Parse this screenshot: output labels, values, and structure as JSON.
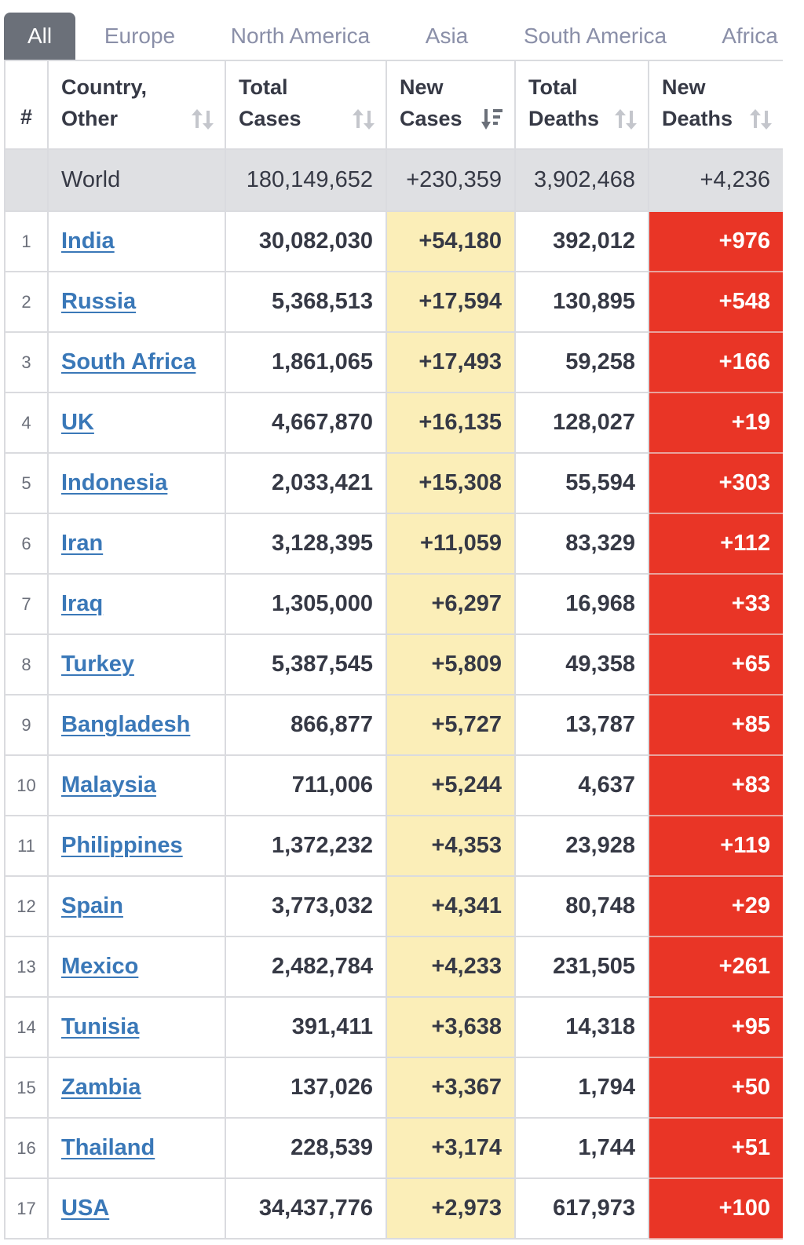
{
  "tabs": [
    {
      "label": "All",
      "active": true
    },
    {
      "label": "Europe",
      "active": false
    },
    {
      "label": "North America",
      "active": false
    },
    {
      "label": "Asia",
      "active": false
    },
    {
      "label": "South America",
      "active": false
    },
    {
      "label": "Africa",
      "active": false
    }
  ],
  "table": {
    "headers": {
      "rank": "#",
      "country": "Country,\nOther",
      "total_cases": "Total\nCases",
      "new_cases": "New\nCases",
      "total_deaths": "Total\nDeaths",
      "new_deaths": "New\nDeaths"
    },
    "sorted_column": "new_cases",
    "world": {
      "country": "World",
      "total_cases": "180,149,652",
      "new_cases": "+230,359",
      "total_deaths": "3,902,468",
      "new_deaths": "+4,236"
    },
    "rows": [
      {
        "rank": "1",
        "country": "India",
        "total_cases": "30,082,030",
        "new_cases": "+54,180",
        "total_deaths": "392,012",
        "new_deaths": "+976"
      },
      {
        "rank": "2",
        "country": "Russia",
        "total_cases": "5,368,513",
        "new_cases": "+17,594",
        "total_deaths": "130,895",
        "new_deaths": "+548"
      },
      {
        "rank": "3",
        "country": "South Africa",
        "total_cases": "1,861,065",
        "new_cases": "+17,493",
        "total_deaths": "59,258",
        "new_deaths": "+166"
      },
      {
        "rank": "4",
        "country": "UK",
        "total_cases": "4,667,870",
        "new_cases": "+16,135",
        "total_deaths": "128,027",
        "new_deaths": "+19"
      },
      {
        "rank": "5",
        "country": "Indonesia",
        "total_cases": "2,033,421",
        "new_cases": "+15,308",
        "total_deaths": "55,594",
        "new_deaths": "+303"
      },
      {
        "rank": "6",
        "country": "Iran",
        "total_cases": "3,128,395",
        "new_cases": "+11,059",
        "total_deaths": "83,329",
        "new_deaths": "+112"
      },
      {
        "rank": "7",
        "country": "Iraq",
        "total_cases": "1,305,000",
        "new_cases": "+6,297",
        "total_deaths": "16,968",
        "new_deaths": "+33"
      },
      {
        "rank": "8",
        "country": "Turkey",
        "total_cases": "5,387,545",
        "new_cases": "+5,809",
        "total_deaths": "49,358",
        "new_deaths": "+65"
      },
      {
        "rank": "9",
        "country": "Bangladesh",
        "total_cases": "866,877",
        "new_cases": "+5,727",
        "total_deaths": "13,787",
        "new_deaths": "+85"
      },
      {
        "rank": "10",
        "country": "Malaysia",
        "total_cases": "711,006",
        "new_cases": "+5,244",
        "total_deaths": "4,637",
        "new_deaths": "+83"
      },
      {
        "rank": "11",
        "country": "Philippines",
        "total_cases": "1,372,232",
        "new_cases": "+4,353",
        "total_deaths": "23,928",
        "new_deaths": "+119"
      },
      {
        "rank": "12",
        "country": "Spain",
        "total_cases": "3,773,032",
        "new_cases": "+4,341",
        "total_deaths": "80,748",
        "new_deaths": "+29"
      },
      {
        "rank": "13",
        "country": "Mexico",
        "total_cases": "2,482,784",
        "new_cases": "+4,233",
        "total_deaths": "231,505",
        "new_deaths": "+261"
      },
      {
        "rank": "14",
        "country": "Tunisia",
        "total_cases": "391,411",
        "new_cases": "+3,638",
        "total_deaths": "14,318",
        "new_deaths": "+95"
      },
      {
        "rank": "15",
        "country": "Zambia",
        "total_cases": "137,026",
        "new_cases": "+3,367",
        "total_deaths": "1,794",
        "new_deaths": "+50"
      },
      {
        "rank": "16",
        "country": "Thailand",
        "total_cases": "228,539",
        "new_cases": "+3,174",
        "total_deaths": "1,744",
        "new_deaths": "+51"
      },
      {
        "rank": "17",
        "country": "USA",
        "total_cases": "34,437,776",
        "new_cases": "+2,973",
        "total_deaths": "617,973",
        "new_deaths": "+100"
      }
    ]
  },
  "colors": {
    "active_tab_bg": "#6b7079",
    "inactive_tab_text": "#8a8fa8",
    "world_row_bg": "#dfe0e3",
    "new_cases_bg": "#fbeeb8",
    "new_deaths_bg": "#e93526",
    "link": "#3a78b8"
  },
  "icons": {
    "sort": "sort-arrows-icon",
    "sorted_desc": "sort-desc-icon"
  }
}
